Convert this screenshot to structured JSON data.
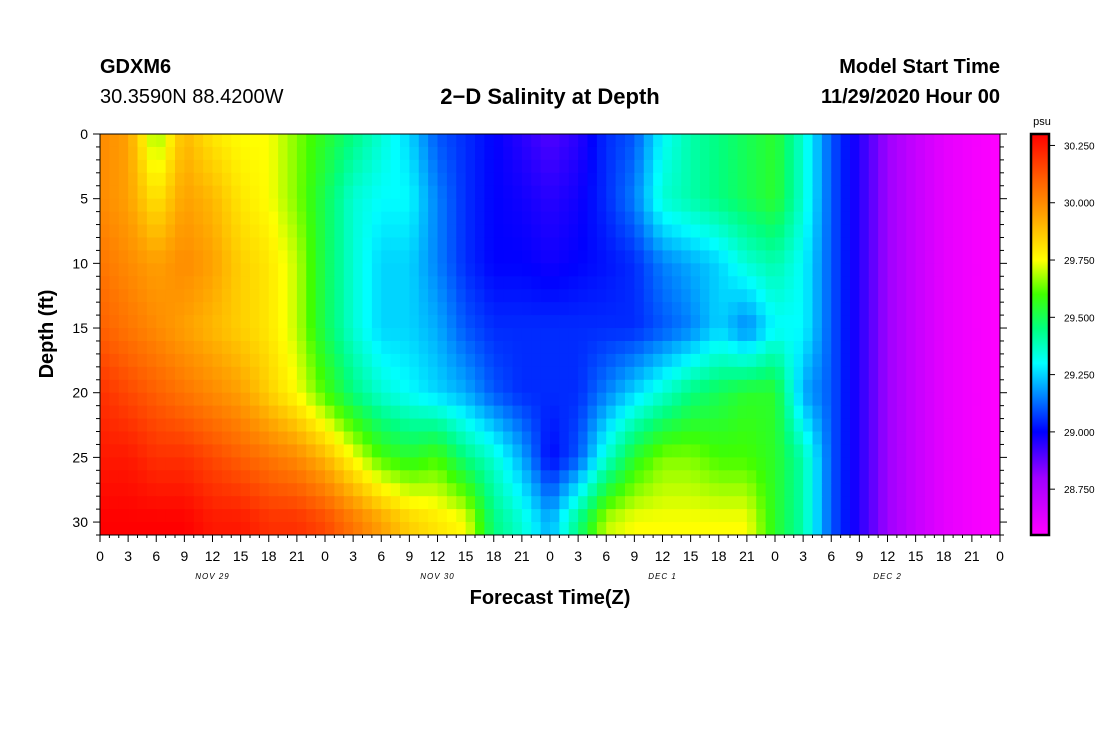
{
  "header": {
    "station_id": "GDXM6",
    "station_location": "30.3590N 88.4200W",
    "title": "2−D Salinity at Depth",
    "start_label": "Model Start Time",
    "start_value": "11/29/2020 Hour 00"
  },
  "colorbar": {
    "unit": "psu",
    "tick_labels": [
      "30.250",
      "30.000",
      "29.750",
      "29.500",
      "29.250",
      "29.000",
      "28.750"
    ],
    "min": 28.55,
    "max": 30.3,
    "stops": [
      {
        "v": 28.55,
        "color": "#ff00ff"
      },
      {
        "v": 28.8,
        "color": "#a000ff"
      },
      {
        "v": 29.0,
        "color": "#0000ff"
      },
      {
        "v": 29.15,
        "color": "#0080ff"
      },
      {
        "v": 29.3,
        "color": "#00ffff"
      },
      {
        "v": 29.45,
        "color": "#00ff80"
      },
      {
        "v": 29.6,
        "color": "#40ff00"
      },
      {
        "v": 29.75,
        "color": "#ffff00"
      },
      {
        "v": 29.95,
        "color": "#ffa000"
      },
      {
        "v": 30.1,
        "color": "#ff6000"
      },
      {
        "v": 30.3,
        "color": "#ff0000"
      }
    ]
  },
  "chart_data": {
    "type": "heatmap",
    "title": "2−D Salinity at Depth",
    "xlabel": "Forecast Time(Z)",
    "ylabel": "Depth (ft)",
    "x_unit": "forecast hour",
    "xlim": [
      0,
      96
    ],
    "ylim": [
      0,
      31
    ],
    "y_ticks": [
      0,
      5,
      10,
      15,
      20,
      25,
      30
    ],
    "x_tick_labels": [
      "0",
      "3",
      "6",
      "9",
      "12",
      "15",
      "18",
      "21",
      "0",
      "3",
      "6",
      "9",
      "12",
      "15",
      "18",
      "21",
      "0",
      "3",
      "6",
      "9",
      "12",
      "15",
      "18",
      "21",
      "0",
      "3",
      "6",
      "9",
      "12",
      "15",
      "18",
      "21",
      "0"
    ],
    "day_labels": [
      {
        "hour": 12,
        "label": "NOV 29"
      },
      {
        "hour": 36,
        "label": "NOV 30"
      },
      {
        "hour": 60,
        "label": "DEC 1"
      },
      {
        "hour": 84,
        "label": "DEC 2"
      }
    ],
    "depths": [
      0,
      5,
      10,
      15,
      20,
      25,
      30
    ],
    "hours": [
      0,
      3,
      6,
      9,
      12,
      15,
      18,
      21,
      24,
      27,
      30,
      33,
      36,
      39,
      42,
      45,
      48,
      51,
      54,
      57,
      60,
      63,
      66,
      69,
      72,
      75,
      78,
      81,
      84,
      87,
      90,
      93,
      96
    ],
    "values": [
      [
        30.0,
        29.95,
        29.65,
        29.9,
        29.8,
        29.75,
        29.75,
        29.65,
        29.55,
        29.45,
        29.35,
        29.25,
        29.1,
        29.05,
        29.0,
        28.95,
        28.9,
        28.95,
        29.05,
        29.1,
        29.3,
        29.4,
        29.45,
        29.5,
        29.55,
        29.35,
        29.1,
        28.95,
        28.8,
        28.7,
        28.62,
        28.58,
        28.55
      ],
      [
        30.0,
        29.95,
        29.8,
        29.95,
        29.9,
        29.8,
        29.75,
        29.65,
        29.5,
        29.35,
        29.3,
        29.3,
        29.15,
        29.05,
        29.0,
        28.98,
        28.95,
        28.98,
        29.05,
        29.15,
        29.35,
        29.4,
        29.45,
        29.5,
        29.55,
        29.35,
        29.1,
        28.95,
        28.8,
        28.7,
        28.62,
        28.58,
        28.55
      ],
      [
        30.05,
        30.0,
        29.95,
        30.0,
        29.95,
        29.85,
        29.8,
        29.7,
        29.5,
        29.35,
        29.25,
        29.25,
        29.15,
        29.05,
        29.0,
        29.0,
        28.98,
        29.0,
        29.02,
        29.05,
        29.15,
        29.2,
        29.25,
        29.35,
        29.4,
        29.3,
        29.1,
        28.95,
        28.8,
        28.7,
        28.62,
        28.58,
        28.55
      ],
      [
        30.1,
        30.05,
        30.0,
        29.95,
        29.9,
        29.85,
        29.8,
        29.7,
        29.5,
        29.35,
        29.25,
        29.25,
        29.2,
        29.1,
        29.05,
        29.05,
        29.05,
        29.05,
        29.05,
        29.05,
        29.1,
        29.15,
        29.25,
        29.15,
        29.3,
        29.3,
        29.1,
        28.95,
        28.8,
        28.7,
        28.62,
        28.58,
        28.55
      ],
      [
        30.2,
        30.15,
        30.1,
        30.05,
        30.0,
        29.95,
        29.85,
        29.75,
        29.6,
        29.45,
        29.35,
        29.3,
        29.25,
        29.2,
        29.1,
        29.05,
        29.05,
        29.05,
        29.15,
        29.25,
        29.35,
        29.45,
        29.5,
        29.55,
        29.55,
        29.2,
        29.1,
        28.95,
        28.8,
        28.7,
        28.62,
        28.58,
        28.55
      ],
      [
        30.25,
        30.25,
        30.2,
        30.2,
        30.15,
        30.1,
        30.05,
        30.0,
        29.9,
        29.75,
        29.6,
        29.55,
        29.6,
        29.45,
        29.35,
        29.2,
        29.0,
        29.1,
        29.35,
        29.55,
        29.65,
        29.65,
        29.6,
        29.6,
        29.55,
        29.4,
        29.1,
        28.95,
        28.8,
        28.7,
        28.62,
        28.58,
        28.55
      ],
      [
        30.3,
        30.3,
        30.3,
        30.3,
        30.25,
        30.25,
        30.2,
        30.2,
        30.15,
        30.05,
        29.95,
        29.85,
        29.8,
        29.75,
        29.45,
        29.35,
        29.2,
        29.45,
        29.7,
        29.75,
        29.75,
        29.75,
        29.75,
        29.75,
        29.55,
        29.4,
        29.1,
        28.95,
        28.8,
        28.7,
        28.62,
        28.58,
        28.55
      ]
    ]
  }
}
